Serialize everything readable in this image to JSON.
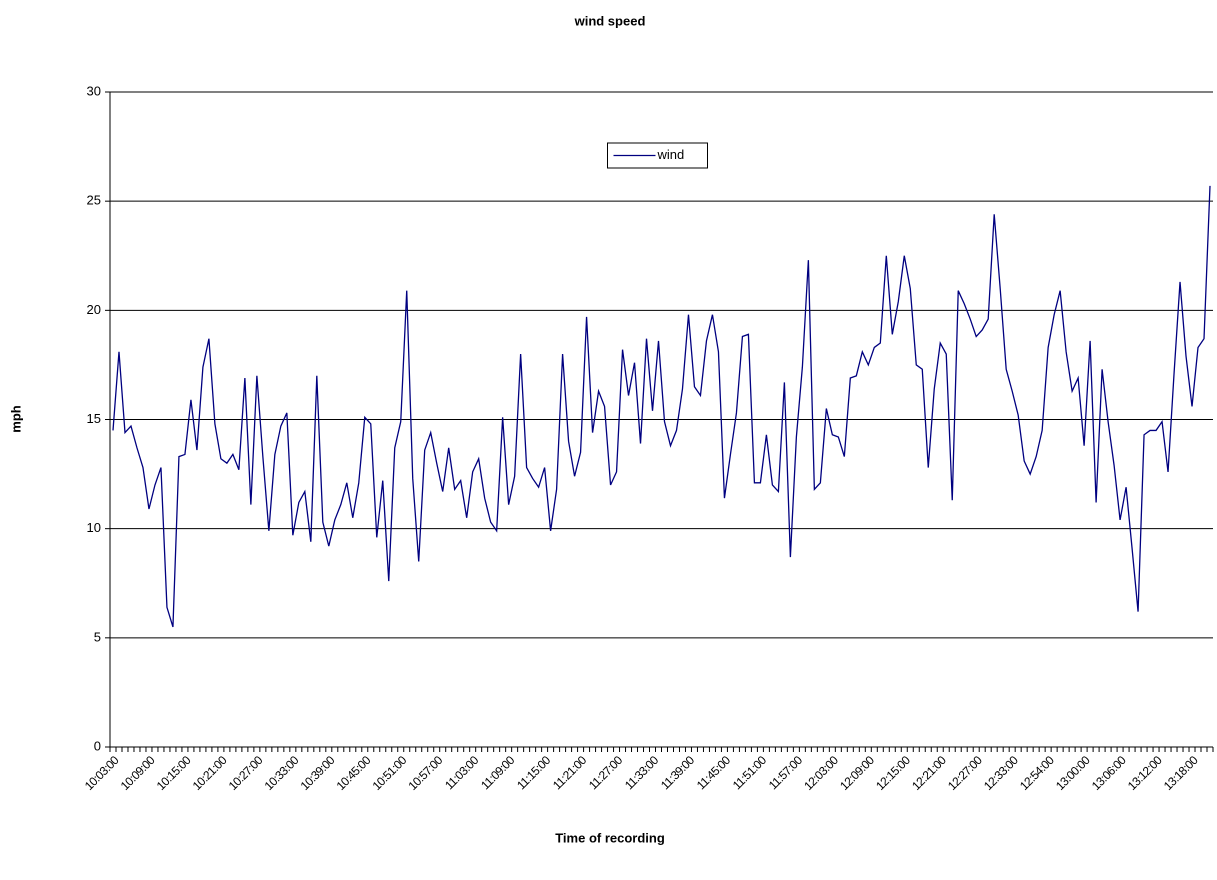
{
  "chart_data": {
    "type": "line",
    "title": "wind speed",
    "x_label": "Time of recording",
    "y_label": "mph",
    "categories": [
      "10:03:00",
      null,
      null,
      null,
      null,
      null,
      "10:09:00",
      null,
      null,
      null,
      null,
      null,
      "10:15:00",
      null,
      null,
      null,
      null,
      null,
      "10:21:00",
      null,
      null,
      null,
      null,
      null,
      "10:27:00",
      null,
      null,
      null,
      null,
      null,
      "10:33:00",
      null,
      null,
      null,
      null,
      null,
      "10:39:00",
      null,
      null,
      null,
      null,
      null,
      "10:45:00",
      null,
      null,
      null,
      null,
      null,
      "10:51:00",
      null,
      null,
      null,
      null,
      null,
      "10:57:00",
      null,
      null,
      null,
      null,
      null,
      "11:03:00",
      null,
      null,
      null,
      null,
      null,
      "11:09:00",
      null,
      null,
      null,
      null,
      null,
      "11:15:00",
      null,
      null,
      null,
      null,
      null,
      "11:21:00",
      null,
      null,
      null,
      null,
      null,
      "11:27:00",
      null,
      null,
      null,
      null,
      null,
      "11:33:00",
      null,
      null,
      null,
      null,
      null,
      "11:39:00",
      null,
      null,
      null,
      null,
      null,
      "11:45:00",
      null,
      null,
      null,
      null,
      null,
      "11:51:00",
      null,
      null,
      null,
      null,
      null,
      "11:57:00",
      null,
      null,
      null,
      null,
      null,
      "12:03:00",
      null,
      null,
      null,
      null,
      null,
      "12:09:00",
      null,
      null,
      null,
      null,
      null,
      "12:15:00",
      null,
      null,
      null,
      null,
      null,
      "12:21:00",
      null,
      null,
      null,
      null,
      null,
      "12:27:00",
      null,
      null,
      null,
      null,
      null,
      "12:33:00",
      null,
      null,
      null,
      null,
      null,
      "12:54:00",
      null,
      null,
      null,
      null,
      null,
      "13:00:00",
      null,
      null,
      null,
      null,
      null,
      "13:06:00",
      null,
      null,
      null,
      null,
      null,
      "13:12:00",
      null,
      null,
      null,
      null,
      null,
      "13:18:00",
      null,
      null,
      null
    ],
    "series": [
      {
        "name": "wind",
        "color": "#000080",
        "values": [
          14.5,
          18.1,
          14.4,
          14.7,
          13.7,
          12.8,
          10.9,
          12.0,
          12.8,
          6.4,
          5.5,
          13.3,
          13.4,
          15.9,
          13.6,
          17.4,
          18.7,
          14.8,
          13.2,
          13.0,
          13.4,
          12.7,
          16.9,
          11.1,
          17.0,
          13.3,
          9.9,
          13.4,
          14.7,
          15.3,
          9.7,
          11.2,
          11.7,
          9.4,
          17.0,
          10.3,
          9.2,
          10.4,
          11.1,
          12.1,
          10.5,
          12.1,
          15.1,
          14.8,
          9.6,
          12.2,
          7.6,
          13.7,
          14.9,
          20.9,
          12.3,
          8.5,
          13.6,
          14.4,
          13.0,
          11.7,
          13.7,
          11.8,
          12.2,
          10.5,
          12.6,
          13.2,
          11.4,
          10.3,
          9.9,
          15.1,
          11.1,
          12.4,
          18.0,
          12.8,
          12.3,
          11.9,
          12.8,
          9.9,
          11.8,
          18.0,
          14.0,
          12.4,
          13.5,
          19.7,
          14.4,
          16.3,
          15.6,
          12.0,
          12.6,
          18.2,
          16.1,
          17.6,
          13.9,
          18.7,
          15.4,
          18.6,
          14.9,
          13.8,
          14.5,
          16.4,
          19.8,
          16.5,
          16.1,
          18.6,
          19.8,
          18.1,
          11.4,
          13.4,
          15.3,
          18.8,
          18.9,
          12.1,
          12.1,
          14.3,
          12.0,
          11.7,
          16.7,
          8.7,
          14.2,
          17.4,
          22.3,
          11.8,
          12.1,
          15.5,
          14.3,
          14.2,
          13.3,
          16.9,
          17.0,
          18.1,
          17.5,
          18.3,
          18.5,
          22.5,
          18.9,
          20.4,
          22.5,
          21.0,
          17.5,
          17.3,
          12.8,
          16.4,
          18.5,
          18.0,
          11.3,
          20.9,
          20.3,
          19.6,
          18.8,
          19.1,
          19.6,
          24.4,
          21.0,
          17.3,
          16.3,
          15.2,
          13.1,
          12.5,
          13.3,
          14.5,
          18.3,
          19.8,
          20.9,
          18.1,
          16.3,
          16.9,
          13.8,
          18.6,
          11.2,
          17.3,
          14.9,
          12.9,
          10.4,
          11.9,
          9.1,
          6.2,
          14.3,
          14.5,
          14.5,
          14.9,
          12.6,
          17.1,
          21.3,
          17.9,
          15.6,
          18.3,
          18.7,
          25.7
        ]
      }
    ],
    "ylim": [
      0,
      30
    ],
    "yticks": [
      0,
      5,
      10,
      15,
      20,
      25,
      30
    ],
    "grid": true,
    "legend": "top"
  }
}
